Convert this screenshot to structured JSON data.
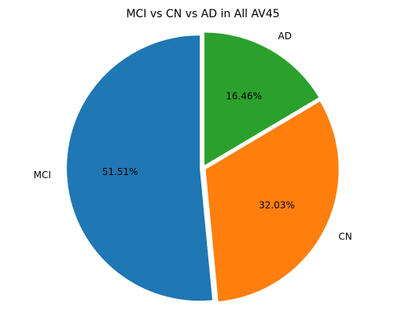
{
  "chart_data": {
    "type": "pie",
    "title": "MCI vs CN vs AD in All AV45",
    "start_angle_deg": 90,
    "direction": "counterclockwise",
    "explode": true,
    "slices": [
      {
        "label": "MCI",
        "value": 51.51,
        "pct_label": "51.51%",
        "color": "#1f77b4"
      },
      {
        "label": "CN",
        "value": 32.03,
        "pct_label": "32.03%",
        "color": "#ff7f0e"
      },
      {
        "label": "AD",
        "value": 16.46,
        "pct_label": "16.46%",
        "color": "#2ca02c"
      }
    ]
  }
}
